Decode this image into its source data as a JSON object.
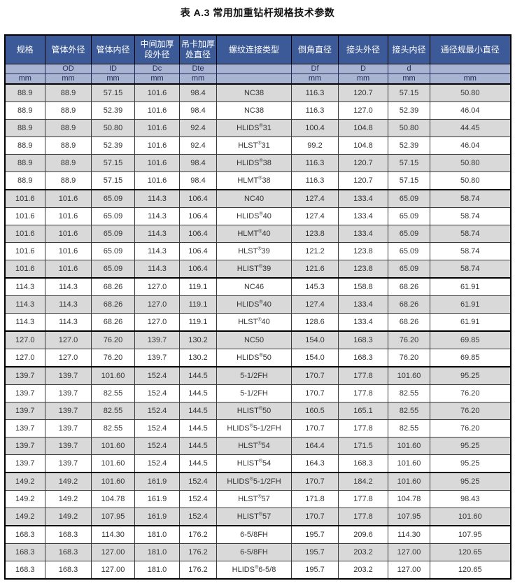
{
  "title": "表 A.3 常用加重钻杆规格技术参数",
  "colors": {
    "header_bg": "#3d5a98",
    "header_text": "#ffffff",
    "subheader_bg": "#a9b3d2",
    "subheader_text": "#1c2a55",
    "row_stripe_bg": "#d9d9d9",
    "row_bg": "#ffffff",
    "data_text": "#333333",
    "border": "#000000"
  },
  "table": {
    "columns": [
      {
        "key": "spec",
        "label": "规格",
        "symbol": "",
        "unit": "mm"
      },
      {
        "key": "od",
        "label": "管体外径",
        "symbol": "OD",
        "unit": "mm"
      },
      {
        "key": "id",
        "label": "管体内径",
        "symbol": "ID",
        "unit": "mm"
      },
      {
        "key": "dc",
        "label": "中间加厚\n段外径",
        "symbol": "Dc",
        "unit": "mm"
      },
      {
        "key": "dte",
        "label": "吊卡加厚\n处直径",
        "symbol": "Dte",
        "unit": "mm"
      },
      {
        "key": "thread",
        "label": "螺纹连接类型",
        "symbol": "",
        "unit": ""
      },
      {
        "key": "df",
        "label": "倒角直径",
        "symbol": "Df",
        "unit": "mm"
      },
      {
        "key": "djod",
        "label": "接头外径",
        "symbol": "D",
        "unit": "mm"
      },
      {
        "key": "djid",
        "label": "接头内径",
        "symbol": "d",
        "unit": "mm"
      },
      {
        "key": "drift",
        "label": "通径规最小直径",
        "symbol": "",
        "unit": "mm"
      }
    ],
    "rows": [
      [
        "88.9",
        "88.9",
        "57.15",
        "101.6",
        "98.4",
        "NC38",
        "116.3",
        "120.7",
        "57.15",
        "50.80"
      ],
      [
        "88.9",
        "88.9",
        "52.39",
        "101.6",
        "98.4",
        "NC38",
        "116.3",
        "127.0",
        "52.39",
        "46.04"
      ],
      [
        "88.9",
        "88.9",
        "50.80",
        "101.6",
        "92.4",
        "HLIDS®31",
        "100.4",
        "104.8",
        "50.80",
        "44.45"
      ],
      [
        "88.9",
        "88.9",
        "52.39",
        "101.6",
        "92.4",
        "HLST®31",
        "99.2",
        "104.8",
        "52.39",
        "46.04"
      ],
      [
        "88.9",
        "88.9",
        "57.15",
        "101.6",
        "98.4",
        "HLIDS®38",
        "116.3",
        "120.7",
        "57.15",
        "50.80"
      ],
      [
        "88.9",
        "88.9",
        "57.15",
        "101.6",
        "98.4",
        "HLMT®38",
        "116.3",
        "120.7",
        "57.15",
        "50.80"
      ],
      [
        "101.6",
        "101.6",
        "65.09",
        "114.3",
        "106.4",
        "NC40",
        "127.4",
        "133.4",
        "65.09",
        "58.74"
      ],
      [
        "101.6",
        "101.6",
        "65.09",
        "114.3",
        "106.4",
        "HLIDS®40",
        "127.4",
        "133.4",
        "65.09",
        "58.74"
      ],
      [
        "101.6",
        "101.6",
        "65.09",
        "114.3",
        "106.4",
        "HLMT®40",
        "123.8",
        "133.4",
        "65.09",
        "58.74"
      ],
      [
        "101.6",
        "101.6",
        "65.09",
        "114.3",
        "106.4",
        "HLST®39",
        "121.2",
        "123.8",
        "65.09",
        "58.74"
      ],
      [
        "101.6",
        "101.6",
        "65.09",
        "114.3",
        "106.4",
        "HLIST®39",
        "121.6",
        "123.8",
        "65.09",
        "58.74"
      ],
      [
        "114.3",
        "114.3",
        "68.26",
        "127.0",
        "119.1",
        "NC46",
        "145.3",
        "158.8",
        "68.26",
        "61.91"
      ],
      [
        "114.3",
        "114.3",
        "68.26",
        "127.0",
        "119.1",
        "HLIDS®40",
        "127.4",
        "133.4",
        "68.26",
        "61.91"
      ],
      [
        "114.3",
        "114.3",
        "68.26",
        "127.0",
        "119.1",
        "HLST®40",
        "128.6",
        "133.4",
        "68.26",
        "61.91"
      ],
      [
        "127.0",
        "127.0",
        "76.20",
        "139.7",
        "130.2",
        "NC50",
        "154.0",
        "168.3",
        "76.20",
        "69.85"
      ],
      [
        "127.0",
        "127.0",
        "76.20",
        "139.7",
        "130.2",
        "HLIDS®50",
        "154.0",
        "168.3",
        "76.20",
        "69.85"
      ],
      [
        "139.7",
        "139.7",
        "101.60",
        "152.4",
        "144.5",
        "5-1/2FH",
        "170.7",
        "177.8",
        "101.60",
        "95.25"
      ],
      [
        "139.7",
        "139.7",
        "82.55",
        "152.4",
        "144.5",
        "5-1/2FH",
        "170.7",
        "177.8",
        "82.55",
        "76.20"
      ],
      [
        "139.7",
        "139.7",
        "82.55",
        "152.4",
        "144.5",
        "HLIST®50",
        "160.5",
        "165.1",
        "82.55",
        "76.20"
      ],
      [
        "139.7",
        "139.7",
        "82.55",
        "152.4",
        "144.5",
        "HLIDS®5-1/2FH",
        "170.7",
        "177.8",
        "82.55",
        "76.20"
      ],
      [
        "139.7",
        "139.7",
        "101.60",
        "152.4",
        "144.5",
        "HLST®54",
        "164.4",
        "171.5",
        "101.60",
        "95.25"
      ],
      [
        "139.7",
        "139.7",
        "101.60",
        "152.4",
        "144.5",
        "HLIST®54",
        "164.3",
        "168.3",
        "101.60",
        "95.25"
      ],
      [
        "149.2",
        "149.2",
        "101.60",
        "161.9",
        "152.4",
        "HLIDS®5-1/2FH",
        "170.7",
        "184.2",
        "101.60",
        "95.25"
      ],
      [
        "149.2",
        "149.2",
        "104.78",
        "161.9",
        "152.4",
        "HLST®57",
        "171.8",
        "177.8",
        "104.78",
        "98.43"
      ],
      [
        "149.2",
        "149.2",
        "107.95",
        "161.9",
        "152.4",
        "HLIST®57",
        "170.7",
        "177.8",
        "107.95",
        "101.60"
      ],
      [
        "168.3",
        "168.3",
        "114.30",
        "181.0",
        "176.2",
        "6-5/8FH",
        "195.7",
        "209.6",
        "114.30",
        "107.95"
      ],
      [
        "168.3",
        "168.3",
        "127.00",
        "181.0",
        "176.2",
        "6-5/8FH",
        "195.7",
        "203.2",
        "127.00",
        "120.65"
      ],
      [
        "168.3",
        "168.3",
        "127.00",
        "181.0",
        "176.2",
        "HLIDS®6-5/8",
        "195.7",
        "203.2",
        "127.00",
        "120.65"
      ]
    ],
    "section_start_rows": [
      6,
      11,
      14,
      16,
      22,
      25
    ]
  }
}
